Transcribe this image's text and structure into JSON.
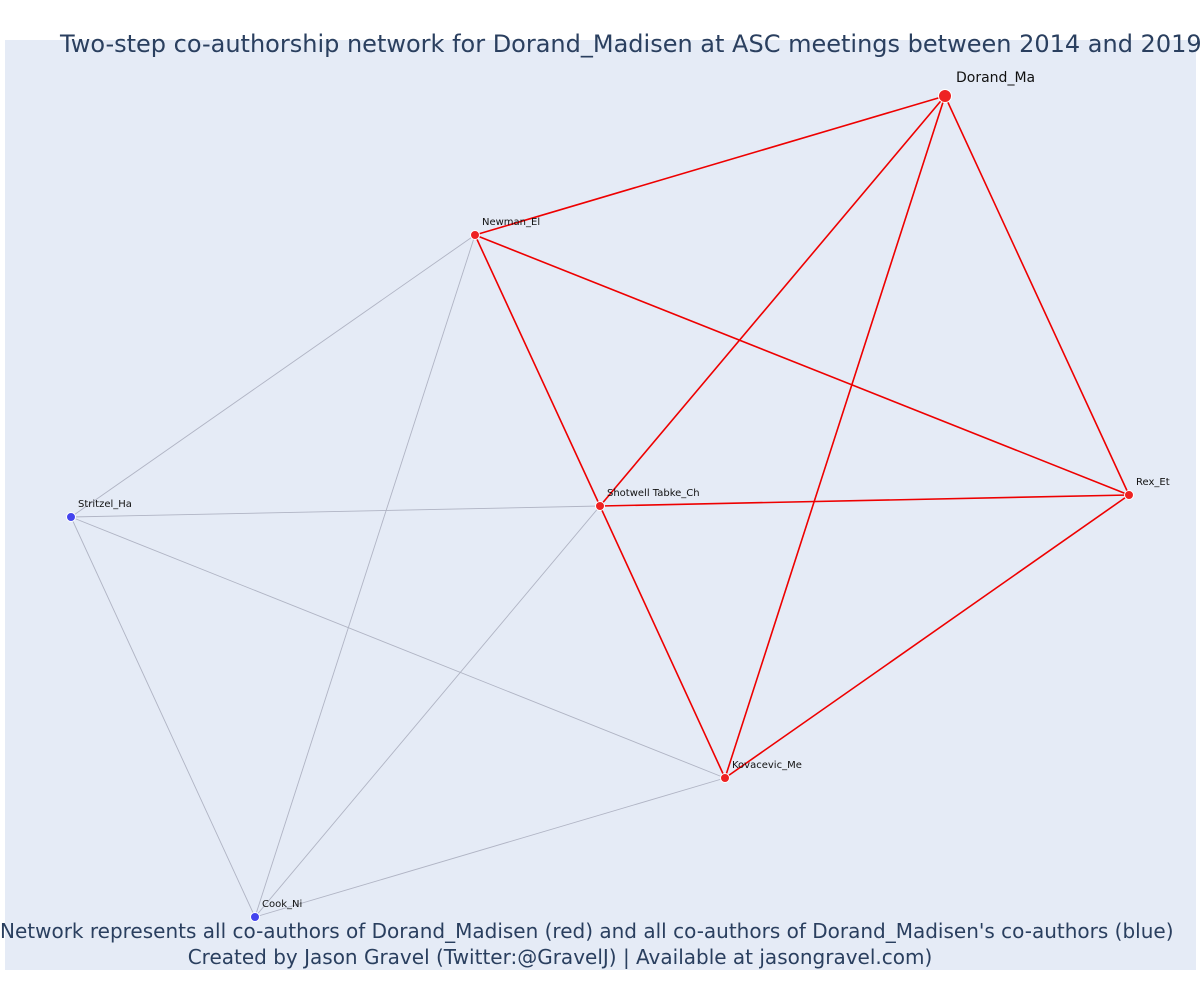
{
  "title": "Two-step co-authorship network for Dorand_Madisen at ASC meetings between 2014 and 2019",
  "caption": {
    "line1": "Network represents all co-authors of Dorand_Madisen (red) and all co-authors of Dorand_Madisen's co-authors (blue)",
    "line2": "Created by Jason Gravel (Twitter:@GravelJ) | Available at jasongravel.com)"
  },
  "colors": {
    "background": "#e5ebf6",
    "red_node": "#ee2222",
    "blue_node": "#4444ee",
    "red_edge": "#ee0000",
    "grey_edge": "#b0b4c4",
    "text": "#2a3f5f"
  },
  "nodes": [
    {
      "id": "Dorand_Ma",
      "group": "focal"
    },
    {
      "id": "Newman_El",
      "group": "red"
    },
    {
      "id": "Shotwell Tabke_Ch",
      "group": "red"
    },
    {
      "id": "Rex_Et",
      "group": "red"
    },
    {
      "id": "Kovacevic_Me",
      "group": "red"
    },
    {
      "id": "Stritzel_Ha",
      "group": "blue"
    },
    {
      "id": "Cook_Ni",
      "group": "blue"
    }
  ],
  "edges": [
    {
      "source": "Dorand_Ma",
      "target": "Newman_El",
      "type": "red"
    },
    {
      "source": "Dorand_Ma",
      "target": "Shotwell Tabke_Ch",
      "type": "red"
    },
    {
      "source": "Dorand_Ma",
      "target": "Kovacevic_Me",
      "type": "red"
    },
    {
      "source": "Dorand_Ma",
      "target": "Rex_Et",
      "type": "red"
    },
    {
      "source": "Newman_El",
      "target": "Shotwell Tabke_Ch",
      "type": "red"
    },
    {
      "source": "Newman_El",
      "target": "Rex_Et",
      "type": "red"
    },
    {
      "source": "Shotwell Tabke_Ch",
      "target": "Rex_Et",
      "type": "red"
    },
    {
      "source": "Shotwell Tabke_Ch",
      "target": "Kovacevic_Me",
      "type": "red"
    },
    {
      "source": "Rex_Et",
      "target": "Kovacevic_Me",
      "type": "red"
    },
    {
      "source": "Stritzel_Ha",
      "target": "Newman_El",
      "type": "grey"
    },
    {
      "source": "Stritzel_Ha",
      "target": "Shotwell Tabke_Ch",
      "type": "grey"
    },
    {
      "source": "Stritzel_Ha",
      "target": "Kovacevic_Me",
      "type": "grey"
    },
    {
      "source": "Stritzel_Ha",
      "target": "Cook_Ni",
      "type": "grey"
    },
    {
      "source": "Cook_Ni",
      "target": "Newman_El",
      "type": "grey"
    },
    {
      "source": "Cook_Ni",
      "target": "Shotwell Tabke_Ch",
      "type": "grey"
    },
    {
      "source": "Cook_Ni",
      "target": "Kovacevic_Me",
      "type": "grey"
    }
  ]
}
